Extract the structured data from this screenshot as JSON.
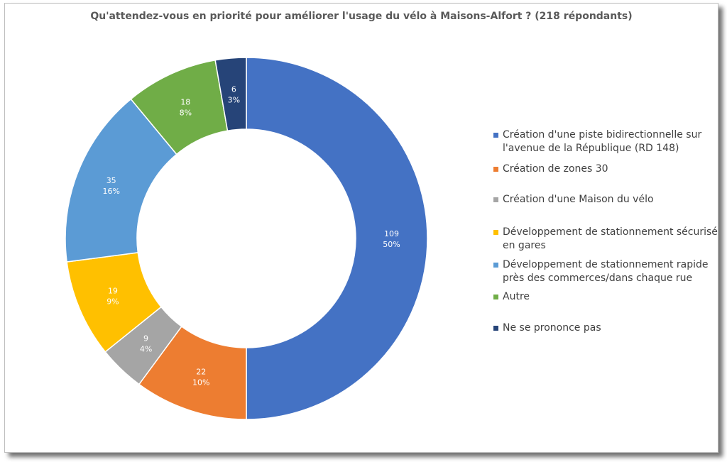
{
  "chart_data": {
    "type": "pie",
    "donut": true,
    "title": "Qu'attendez-vous en priorité pour améliorer l'usage du vélo à Maisons-Alfort ? (218 répondants)",
    "legend_position": "right",
    "slices": [
      {
        "label": "Création d'une piste bidirectionnelle sur l'avenue de la République (RD 148)",
        "value": 109,
        "percent": "50%",
        "color": "#4472C4"
      },
      {
        "label": "Création de zones 30",
        "value": 22,
        "percent": "10%",
        "color": "#ED7D31"
      },
      {
        "label": "Création d'une Maison du vélo",
        "value": 9,
        "percent": "4%",
        "color": "#A5A5A5"
      },
      {
        "label": "Développement de stationnement sécurisé en gares",
        "value": 19,
        "percent": "9%",
        "color": "#FFC000"
      },
      {
        "label": "Développement de stationnement rapide près des commerces/dans chaque rue",
        "value": 35,
        "percent": "16%",
        "color": "#5B9BD5"
      },
      {
        "label": "Autre",
        "value": 18,
        "percent": "8%",
        "color": "#70AD47"
      },
      {
        "label": "Ne se prononce pas",
        "value": 6,
        "percent": "3%",
        "color": "#264478"
      }
    ]
  }
}
